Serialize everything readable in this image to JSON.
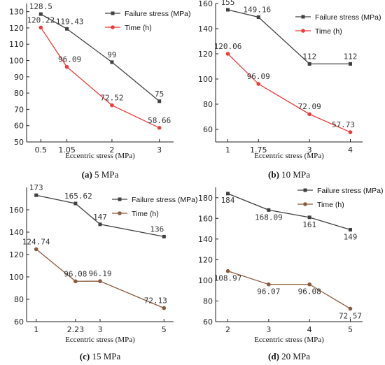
{
  "series_colors": {
    "failure": "#404040",
    "time_a_b": "#ee3a3a",
    "time_c_d": "#8a5a3c"
  },
  "chart_data": [
    {
      "type": "line",
      "caption_letter": "(a)",
      "caption_text": " 5 MPa",
      "xlabel": "Eccentric stress (MPa)",
      "ylabel": "",
      "x_ticks": [
        "0.5",
        "1.05",
        "2",
        "3"
      ],
      "x": [
        0.5,
        1.05,
        2,
        3
      ],
      "xlim": [
        0.2,
        3.3
      ],
      "ylim": [
        50,
        135
      ],
      "y_ticks": [
        50,
        60,
        70,
        80,
        90,
        100,
        110,
        120,
        130
      ],
      "legend_position": "top-right",
      "series": [
        {
          "name": "Failure stress (MPa)",
          "marker": "square",
          "values": [
            128.5,
            119.43,
            99,
            75
          ],
          "labels": [
            "128.5",
            "119.43",
            "99",
            "75"
          ]
        },
        {
          "name": "Time (h)",
          "marker": "circle",
          "values": [
            120.22,
            96.09,
            72.52,
            58.66
          ],
          "labels": [
            "120.22",
            "96.09",
            "72.52",
            "58.66"
          ]
        }
      ]
    },
    {
      "type": "line",
      "caption_letter": "(b)",
      "caption_text": " 10 MPa",
      "xlabel": "Eccentric stress (MPa)",
      "ylabel": "",
      "x_ticks": [
        "1",
        "1.75",
        "3",
        "4"
      ],
      "x": [
        1,
        1.75,
        3,
        4
      ],
      "xlim": [
        0.7,
        4.3
      ],
      "ylim": [
        50,
        160
      ],
      "y_ticks": [
        60,
        80,
        100,
        120,
        140,
        160
      ],
      "legend_position": "top-right",
      "series": [
        {
          "name": "Failure stress (MPa)",
          "marker": "square",
          "values": [
            155,
            149.16,
            112,
            112
          ],
          "labels": [
            "155",
            "149.16",
            "112",
            "112"
          ]
        },
        {
          "name": "Time (h)",
          "marker": "circle",
          "values": [
            120.06,
            96.09,
            72.09,
            57.73
          ],
          "labels": [
            "120.06",
            "96.09",
            "72.09",
            "57.73"
          ]
        }
      ]
    },
    {
      "type": "line",
      "caption_letter": "(c)",
      "caption_text": " 15 MPa",
      "xlabel": "Eccentric stress (MPa)",
      "ylabel": "",
      "x_ticks": [
        "1",
        "2.23",
        "3",
        "5"
      ],
      "x": [
        1,
        2.23,
        3,
        5
      ],
      "xlim": [
        0.7,
        5.3
      ],
      "ylim": [
        60,
        180
      ],
      "y_ticks": [
        60,
        80,
        100,
        120,
        140,
        160
      ],
      "legend_position": "top-right",
      "series": [
        {
          "name": "Failure stress (MPa)",
          "marker": "square",
          "values": [
            173,
            165.62,
            147,
            136
          ],
          "labels": [
            "173",
            "165.62",
            "147",
            "136"
          ]
        },
        {
          "name": "Time (h)",
          "marker": "circle",
          "values": [
            124.74,
            96.08,
            96.19,
            72.13
          ],
          "labels": [
            "124.74",
            "96.08",
            "96.19",
            "72.13"
          ]
        }
      ]
    },
    {
      "type": "line",
      "caption_letter": "(d)",
      "caption_text": " 20 MPa",
      "xlabel": "Eccentric stress (MPa)",
      "ylabel": "",
      "x_ticks": [
        "2",
        "3",
        "4",
        "5"
      ],
      "x": [
        2,
        3,
        4,
        5
      ],
      "xlim": [
        1.7,
        5.3
      ],
      "ylim": [
        60,
        190
      ],
      "y_ticks": [
        60,
        80,
        100,
        120,
        140,
        160,
        180
      ],
      "legend_position": "top-right",
      "series": [
        {
          "name": "Failure stress (MPa)",
          "marker": "square",
          "values": [
            184,
            168.09,
            161,
            149
          ],
          "labels": [
            "184",
            "168.09",
            "161",
            "149"
          ]
        },
        {
          "name": "Time (h)",
          "marker": "circle",
          "values": [
            108.97,
            96.07,
            96.08,
            72.57
          ],
          "labels": [
            "108.97",
            "96.07",
            "96.08",
            "72.57"
          ]
        }
      ]
    }
  ]
}
